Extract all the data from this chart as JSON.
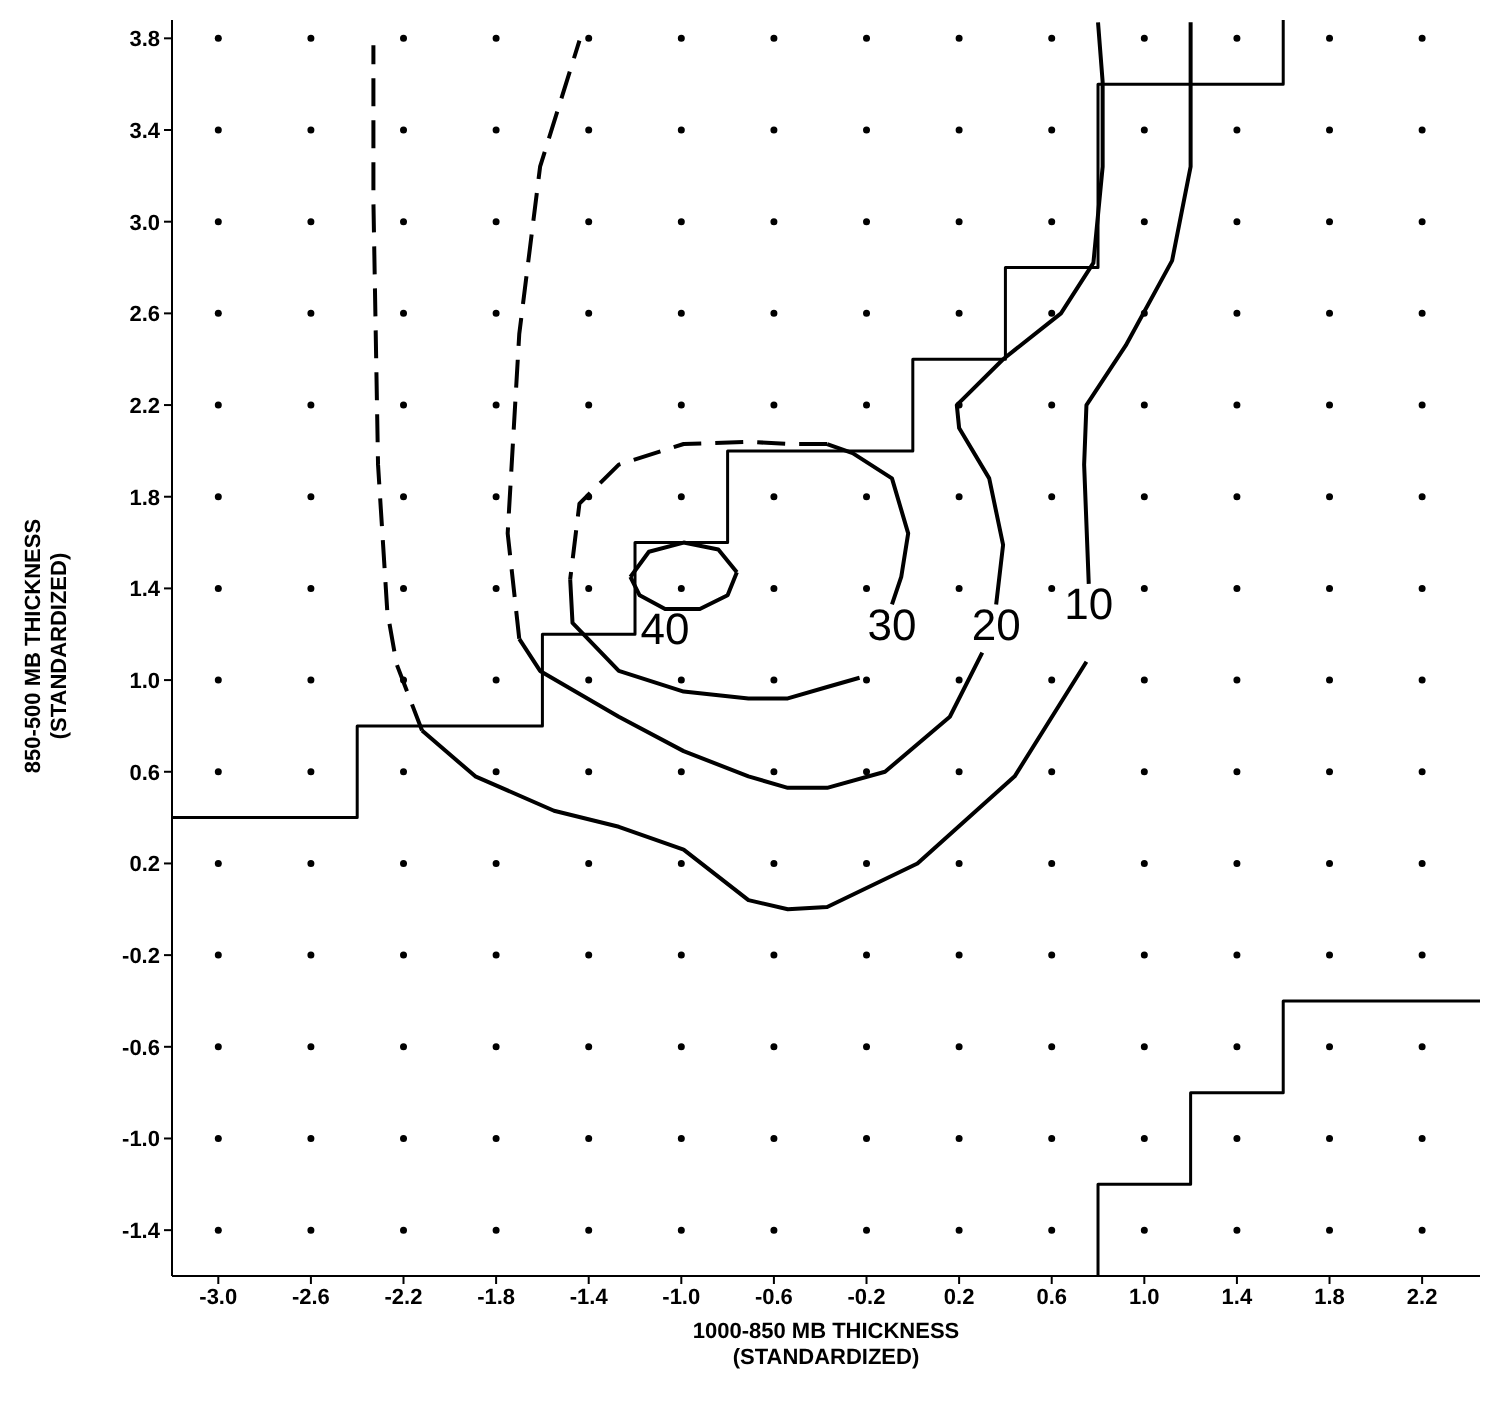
{
  "chart_data": {
    "type": "line",
    "xlabel": "1000-850 MB THICKNESS\n(STANDARDIZED)",
    "ylabel": "850-500 MB THICKNESS\n(STANDARDIZED)",
    "xlim": [
      -3.2,
      2.45
    ],
    "ylim": [
      -1.6,
      3.88
    ],
    "xticks": [
      {
        "value": -3.0,
        "label": "-3.0"
      },
      {
        "value": -2.6,
        "label": "-2.6"
      },
      {
        "value": -2.2,
        "label": "-2.2"
      },
      {
        "value": -1.8,
        "label": "-1.8"
      },
      {
        "value": -1.4,
        "label": "-1.4"
      },
      {
        "value": -1.0,
        "label": "-1.0"
      },
      {
        "value": -0.6,
        "label": "-0.6"
      },
      {
        "value": -0.2,
        "label": "-0.2"
      },
      {
        "value": 0.2,
        "label": "0.2"
      },
      {
        "value": 0.6,
        "label": "0.6"
      },
      {
        "value": 1.0,
        "label": "1.0"
      },
      {
        "value": 1.4,
        "label": "1.4"
      },
      {
        "value": 1.8,
        "label": "1.8"
      },
      {
        "value": 2.2,
        "label": "2.2"
      }
    ],
    "yticks": [
      {
        "value": -1.4,
        "label": "-1.4"
      },
      {
        "value": -1.0,
        "label": "-1.0"
      },
      {
        "value": -0.6,
        "label": "-0.6"
      },
      {
        "value": -0.2,
        "label": "-0.2"
      },
      {
        "value": 0.2,
        "label": "0.2"
      },
      {
        "value": 0.6,
        "label": "0.6"
      },
      {
        "value": 1.0,
        "label": "1.0"
      },
      {
        "value": 1.4,
        "label": "1.4"
      },
      {
        "value": 1.8,
        "label": "1.8"
      },
      {
        "value": 2.2,
        "label": "2.2"
      },
      {
        "value": 2.6,
        "label": "2.6"
      },
      {
        "value": 3.0,
        "label": "3.0"
      },
      {
        "value": 3.4,
        "label": "3.4"
      },
      {
        "value": 3.8,
        "label": "3.8"
      }
    ],
    "grid": true,
    "series": [
      {
        "color": "#000000",
        "line_style": "solid",
        "x": [
          -1.22,
          -1.14,
          -0.99,
          -0.84,
          -0.76
        ],
        "values": [
          1.45,
          1.56,
          1.6,
          1.57,
          1.47
        ]
      },
      {
        "color": "#000000",
        "line_style": "solid",
        "x": [
          -1.22,
          -1.18,
          -1.07,
          -0.92,
          -0.8,
          -0.76
        ],
        "values": [
          1.45,
          1.37,
          1.31,
          1.31,
          1.37,
          1.47
        ]
      },
      {
        "color": "#000000",
        "line_style": "solid",
        "x": [
          -0.37,
          -0.26,
          -0.09,
          -0.02,
          -0.05,
          -0.09
        ],
        "values": [
          2.03,
          1.99,
          1.88,
          1.64,
          1.45,
          1.33
        ]
      },
      {
        "color": "#000000",
        "line_style": "dashed",
        "x": [
          -0.37,
          -0.54,
          -0.71,
          -0.99,
          -1.27,
          -1.44,
          -1.48
        ],
        "values": [
          2.03,
          2.03,
          2.04,
          2.03,
          1.94,
          1.77,
          1.44
        ]
      },
      {
        "color": "#000000",
        "line_style": "solid",
        "x": [
          -1.48,
          -1.47,
          -1.27,
          -0.99,
          -0.71,
          -0.54,
          -0.37,
          -0.23
        ],
        "values": [
          1.44,
          1.25,
          1.04,
          0.95,
          0.92,
          0.92,
          0.97,
          1.01
        ]
      },
      {
        "color": "#000000",
        "line_style": "solid",
        "x": [
          0.8,
          0.82,
          0.82,
          0.78,
          0.64,
          0.39,
          0.19,
          0.2,
          0.33,
          0.39,
          0.36
        ],
        "values": [
          3.87,
          3.61,
          3.24,
          2.82,
          2.6,
          2.4,
          2.2,
          2.1,
          1.88,
          1.59,
          1.33
        ]
      },
      {
        "color": "#000000",
        "line_style": "solid",
        "x": [
          0.3,
          0.16,
          -0.12,
          -0.37,
          -0.54,
          -0.71,
          -0.99,
          -1.27,
          -1.61,
          -1.7
        ],
        "values": [
          1.12,
          0.84,
          0.6,
          0.53,
          0.53,
          0.58,
          0.69,
          0.84,
          1.04,
          1.18
        ]
      },
      {
        "color": "#000000",
        "line_style": "dashed",
        "x": [
          -1.7,
          -1.75,
          -1.7,
          -1.61,
          -1.44
        ],
        "values": [
          1.18,
          1.64,
          2.51,
          3.24,
          3.79
        ]
      },
      {
        "color": "#000000",
        "line_style": "solid",
        "x": [
          1.2,
          1.2,
          1.12,
          0.92,
          0.75,
          0.74,
          0.76
        ],
        "values": [
          3.87,
          3.24,
          2.83,
          2.46,
          2.2,
          1.94,
          1.42
        ]
      },
      {
        "color": "#000000",
        "line_style": "solid",
        "x": [
          0.75,
          0.44,
          0.02,
          -0.37,
          -0.54,
          -0.71,
          -0.99,
          -1.27,
          -1.55,
          -1.89,
          -2.12
        ],
        "values": [
          1.08,
          0.58,
          0.2,
          0.01,
          0.0,
          0.04,
          0.26,
          0.36,
          0.43,
          0.58,
          0.78
        ]
      },
      {
        "color": "#000000",
        "line_style": "dashed",
        "x": [
          -2.12,
          -2.23,
          -2.27,
          -2.31,
          -2.33,
          -2.33
        ],
        "values": [
          0.78,
          1.07,
          1.3,
          1.94,
          3.09,
          3.77
        ]
      },
      {
        "type": "step",
        "color": "#000000",
        "line_style": "solid",
        "x": [
          -3.2,
          -2.4,
          -1.6,
          -1.2,
          -0.8,
          0.0,
          0.4,
          0.8,
          1.6,
          1.6
        ],
        "values": [
          0.4,
          0.4,
          0.8,
          1.2,
          1.6,
          2.0,
          2.4,
          2.8,
          3.6,
          3.88
        ]
      },
      {
        "type": "step",
        "color": "#000000",
        "line_style": "solid",
        "x": [
          0.8,
          1.2,
          1.6,
          2.45
        ],
        "values": [
          -1.6,
          -1.2,
          -0.8,
          -0.4
        ]
      }
    ],
    "annotations": [
      {
        "text": "40",
        "x": -1.07,
        "y": 1.31
      },
      {
        "text": "30",
        "x": -0.09,
        "y": 1.33
      },
      {
        "text": "20",
        "x": 0.36,
        "y": 1.33
      },
      {
        "text": "10",
        "x": 0.76,
        "y": 1.42
      }
    ]
  }
}
